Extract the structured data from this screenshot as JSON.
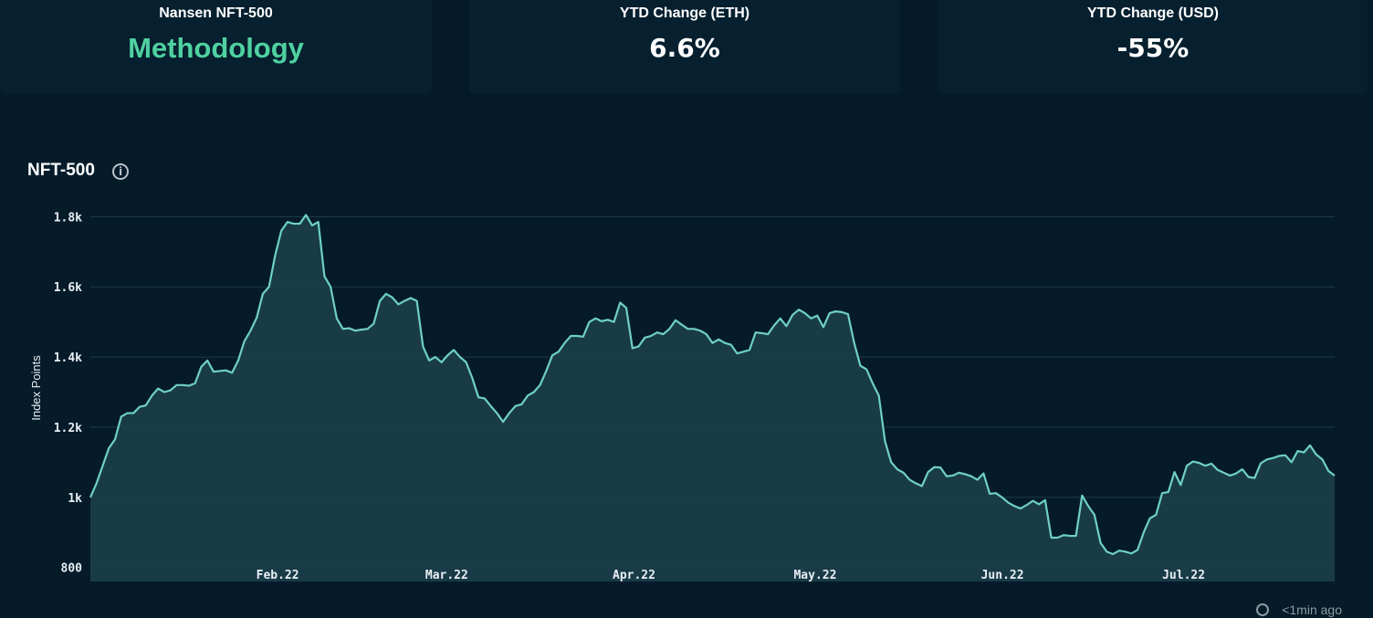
{
  "cards": [
    {
      "label": "Nansen NFT-500",
      "value": "Methodology"
    },
    {
      "label": "YTD Change (ETH)",
      "value": "6.6%"
    },
    {
      "label": "YTD Change (USD)",
      "value": "-55%"
    }
  ],
  "chart": {
    "title": "NFT-500",
    "updated": "<1min ago"
  },
  "colors": {
    "line": "#6fd0c4",
    "fill": "#1c3f4b",
    "accent": "#4fd1a1"
  },
  "chart_data": {
    "type": "area",
    "title": "NFT-500",
    "xlabel": "",
    "ylabel": "Index Points",
    "ylim": [
      760,
      1840
    ],
    "yticks": [
      800,
      1000,
      1200,
      1400,
      1600,
      1800
    ],
    "ytick_labels": [
      "800",
      "1k",
      "1.2k",
      "1.4k",
      "1.6k",
      "1.8k"
    ],
    "x_start": "2022-01-01",
    "x_end": "2022-07-26",
    "xticks": [
      {
        "date": "2022-02-01",
        "label": "Feb.22"
      },
      {
        "date": "2022-03-01",
        "label": "Mar.22"
      },
      {
        "date": "2022-04-01",
        "label": "Apr.22"
      },
      {
        "date": "2022-05-01",
        "label": "May.22"
      },
      {
        "date": "2022-06-01",
        "label": "Jun.22"
      },
      {
        "date": "2022-07-01",
        "label": "Jul.22"
      }
    ],
    "grid": true,
    "series": [
      {
        "values": [
          1000,
          1040,
          1090,
          1140,
          1165,
          1230,
          1240,
          1240,
          1258,
          1262,
          1290,
          1310,
          1300,
          1305,
          1320,
          1320,
          1318,
          1325,
          1372,
          1390,
          1358,
          1360,
          1362,
          1355,
          1390,
          1445,
          1475,
          1512,
          1580,
          1600,
          1690,
          1760,
          1785,
          1780,
          1780,
          1805,
          1775,
          1785,
          1630,
          1600,
          1510,
          1480,
          1482,
          1475,
          1478,
          1480,
          1495,
          1560,
          1580,
          1570,
          1550,
          1560,
          1568,
          1560,
          1430,
          1390,
          1400,
          1385,
          1405,
          1420,
          1400,
          1385,
          1340,
          1285,
          1282,
          1260,
          1240,
          1215,
          1240,
          1260,
          1265,
          1290,
          1300,
          1320,
          1360,
          1405,
          1415,
          1440,
          1460,
          1460,
          1458,
          1500,
          1510,
          1502,
          1506,
          1500,
          1555,
          1540,
          1425,
          1430,
          1455,
          1460,
          1470,
          1465,
          1480,
          1505,
          1492,
          1480,
          1480,
          1475,
          1465,
          1440,
          1450,
          1440,
          1435,
          1410,
          1415,
          1420,
          1470,
          1468,
          1465,
          1490,
          1510,
          1488,
          1520,
          1535,
          1525,
          1510,
          1518,
          1485,
          1525,
          1530,
          1528,
          1522,
          1440,
          1375,
          1365,
          1325,
          1290,
          1160,
          1100,
          1080,
          1070,
          1050,
          1040,
          1032,
          1072,
          1086,
          1085,
          1060,
          1062,
          1070,
          1066,
          1060,
          1050,
          1068,
          1010,
          1012,
          1000,
          985,
          975,
          968,
          978,
          990,
          980,
          992,
          885,
          885,
          892,
          890,
          890,
          1005,
          975,
          950,
          870,
          845,
          838,
          848,
          845,
          840,
          850,
          900,
          940,
          950,
          1012,
          1015,
          1072,
          1035,
          1090,
          1102,
          1098,
          1090,
          1096,
          1078,
          1070,
          1062,
          1068,
          1080,
          1058,
          1055,
          1097,
          1108,
          1112,
          1118,
          1120,
          1100,
          1132,
          1128,
          1148,
          1122,
          1108,
          1075,
          1062
        ]
      }
    ]
  }
}
